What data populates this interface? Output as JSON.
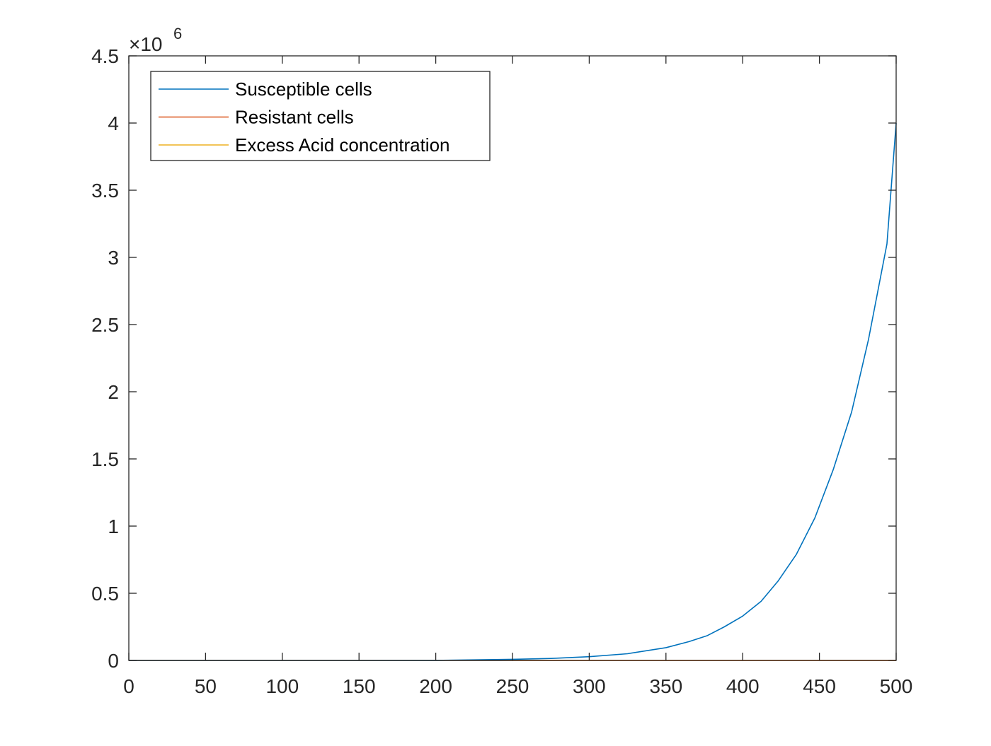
{
  "chart_data": {
    "type": "line",
    "title": "",
    "xlabel": "",
    "ylabel": "",
    "xlim": [
      0,
      500
    ],
    "ylim": [
      0,
      4500000
    ],
    "y_exponent_label": {
      "base": "×10",
      "exp": "6"
    },
    "x_ticks": [
      {
        "value": 0,
        "label": "0"
      },
      {
        "value": 50,
        "label": "50"
      },
      {
        "value": 100,
        "label": "100"
      },
      {
        "value": 150,
        "label": "150"
      },
      {
        "value": 200,
        "label": "200"
      },
      {
        "value": 250,
        "label": "250"
      },
      {
        "value": 300,
        "label": "300"
      },
      {
        "value": 350,
        "label": "350"
      },
      {
        "value": 400,
        "label": "400"
      },
      {
        "value": 450,
        "label": "450"
      },
      {
        "value": 500,
        "label": "500"
      }
    ],
    "y_ticks": [
      {
        "value": 0,
        "label": "0"
      },
      {
        "value": 500000,
        "label": "0.5"
      },
      {
        "value": 1000000,
        "label": "1"
      },
      {
        "value": 1500000,
        "label": "1.5"
      },
      {
        "value": 2000000,
        "label": "2"
      },
      {
        "value": 2500000,
        "label": "2.5"
      },
      {
        "value": 3000000,
        "label": "3"
      },
      {
        "value": 3500000,
        "label": "3.5"
      },
      {
        "value": 4000000,
        "label": "4"
      },
      {
        "value": 4500000,
        "label": "4.5"
      }
    ],
    "grid": false,
    "legend_position": "top-left",
    "series": [
      {
        "name": "Susceptible cells",
        "color": "#0072BD",
        "x": [
          0,
          50,
          100,
          150,
          200,
          250,
          275,
          300,
          325,
          350,
          365,
          377,
          388,
          400,
          412,
          423,
          435,
          447,
          459,
          471,
          482,
          494,
          500
        ],
        "y": [
          0,
          0,
          0,
          0,
          500,
          8000,
          15000,
          28000,
          50000,
          95000,
          140000,
          185000,
          250000,
          330000,
          440000,
          590000,
          790000,
          1060000,
          1420000,
          1850000,
          2390000,
          3100000,
          4000000
        ]
      },
      {
        "name": "Resistant cells",
        "color": "#D95319",
        "x": [
          0,
          500
        ],
        "y": [
          0,
          0
        ]
      },
      {
        "name": "Excess Acid concentration",
        "color": "#EDB120",
        "x": [
          0,
          500
        ],
        "y": [
          0,
          0
        ]
      }
    ]
  }
}
